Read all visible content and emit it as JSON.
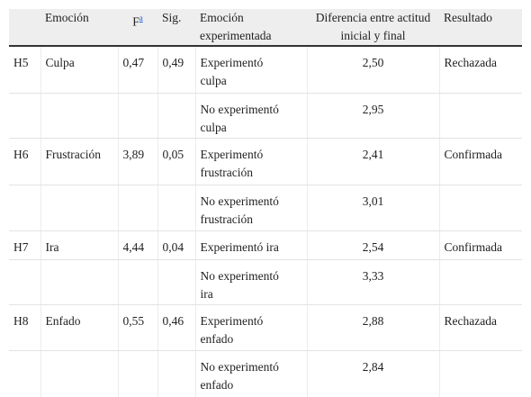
{
  "table": {
    "header": {
      "emotion": "Emoción",
      "f": "F",
      "f_note": "a",
      "sig": "Sig.",
      "group": "Emoción experimentada",
      "difference": "Diferencia entre actitud inicial y final",
      "result": "Resultado"
    },
    "rows": [
      {
        "hypothesis": "H5",
        "emotion": "Culpa",
        "f": "0,47",
        "sig": "0,49",
        "result": "Rechazada",
        "groups": [
          {
            "group": "Experimentó culpa",
            "difference": "2,50"
          },
          {
            "group": "No experimentó culpa",
            "difference": "2,95"
          }
        ]
      },
      {
        "hypothesis": "H6",
        "emotion": "Frustración",
        "f": "3,89",
        "sig": "0,05",
        "result": "Confirmada",
        "groups": [
          {
            "group": "Experimentó frustración",
            "difference": "2,41"
          },
          {
            "group": "No experimentó frustración",
            "difference": "3,01"
          }
        ]
      },
      {
        "hypothesis": "H7",
        "emotion": "Ira",
        "f": "4,44",
        "sig": "0,04",
        "result": "Confirmada",
        "groups": [
          {
            "group": "Experimentó ira",
            "difference": "2,54"
          },
          {
            "group": "No experimentó ira",
            "difference": "3,33"
          }
        ]
      },
      {
        "hypothesis": "H8",
        "emotion": "Enfado",
        "f": "0,55",
        "sig": "0,46",
        "result": "Rechazada",
        "groups": [
          {
            "group": "Experimentó enfado",
            "difference": "2,88"
          },
          {
            "group": "No experimentó enfado",
            "difference": "2,84"
          }
        ]
      }
    ]
  }
}
